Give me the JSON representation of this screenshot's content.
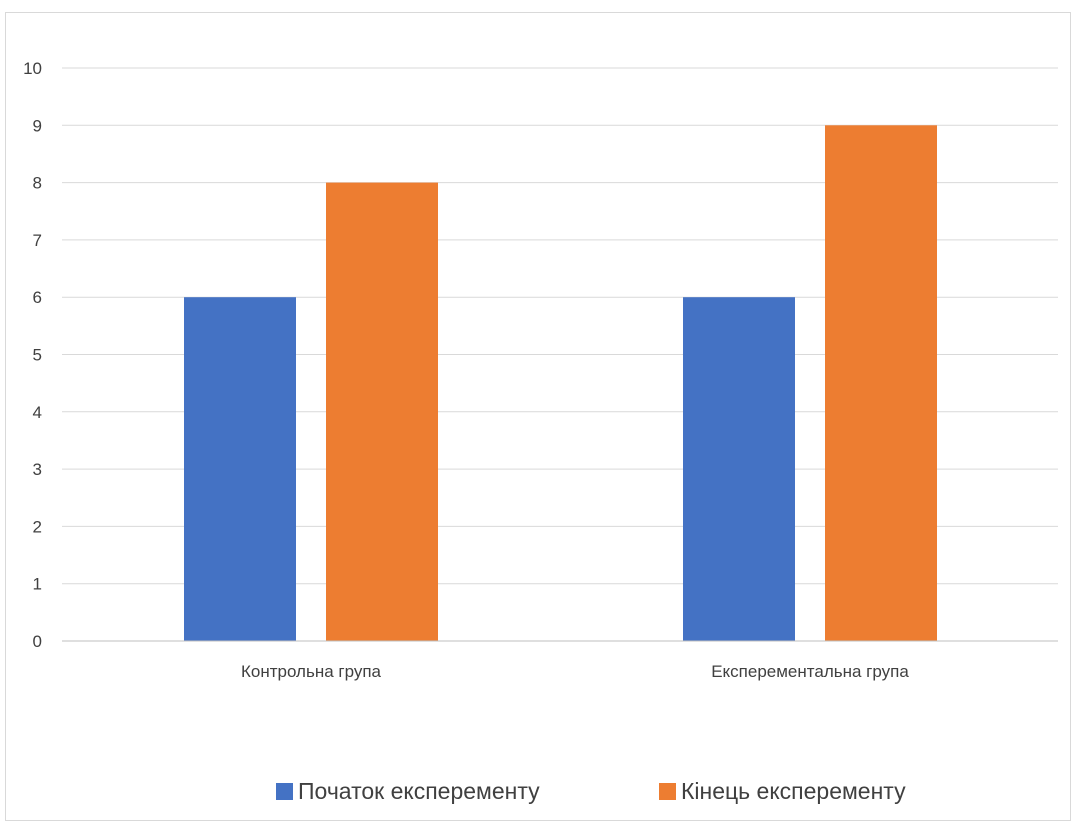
{
  "chart_data": {
    "type": "bar",
    "title": "",
    "xlabel": "",
    "ylabel": "",
    "categories": [
      "Контрольна група",
      "Експерементальна група"
    ],
    "series": [
      {
        "name": "Початок експеременту",
        "values": [
          6,
          6
        ],
        "color": "#4472C4"
      },
      {
        "name": "Кінець експеременту",
        "values": [
          8,
          9
        ],
        "color": "#ED7D31"
      }
    ],
    "ylim": [
      0,
      10
    ],
    "yticks": [
      0,
      1,
      2,
      3,
      4,
      5,
      6,
      7,
      8,
      9,
      10
    ],
    "grid": true,
    "legend_position": "bottom"
  }
}
